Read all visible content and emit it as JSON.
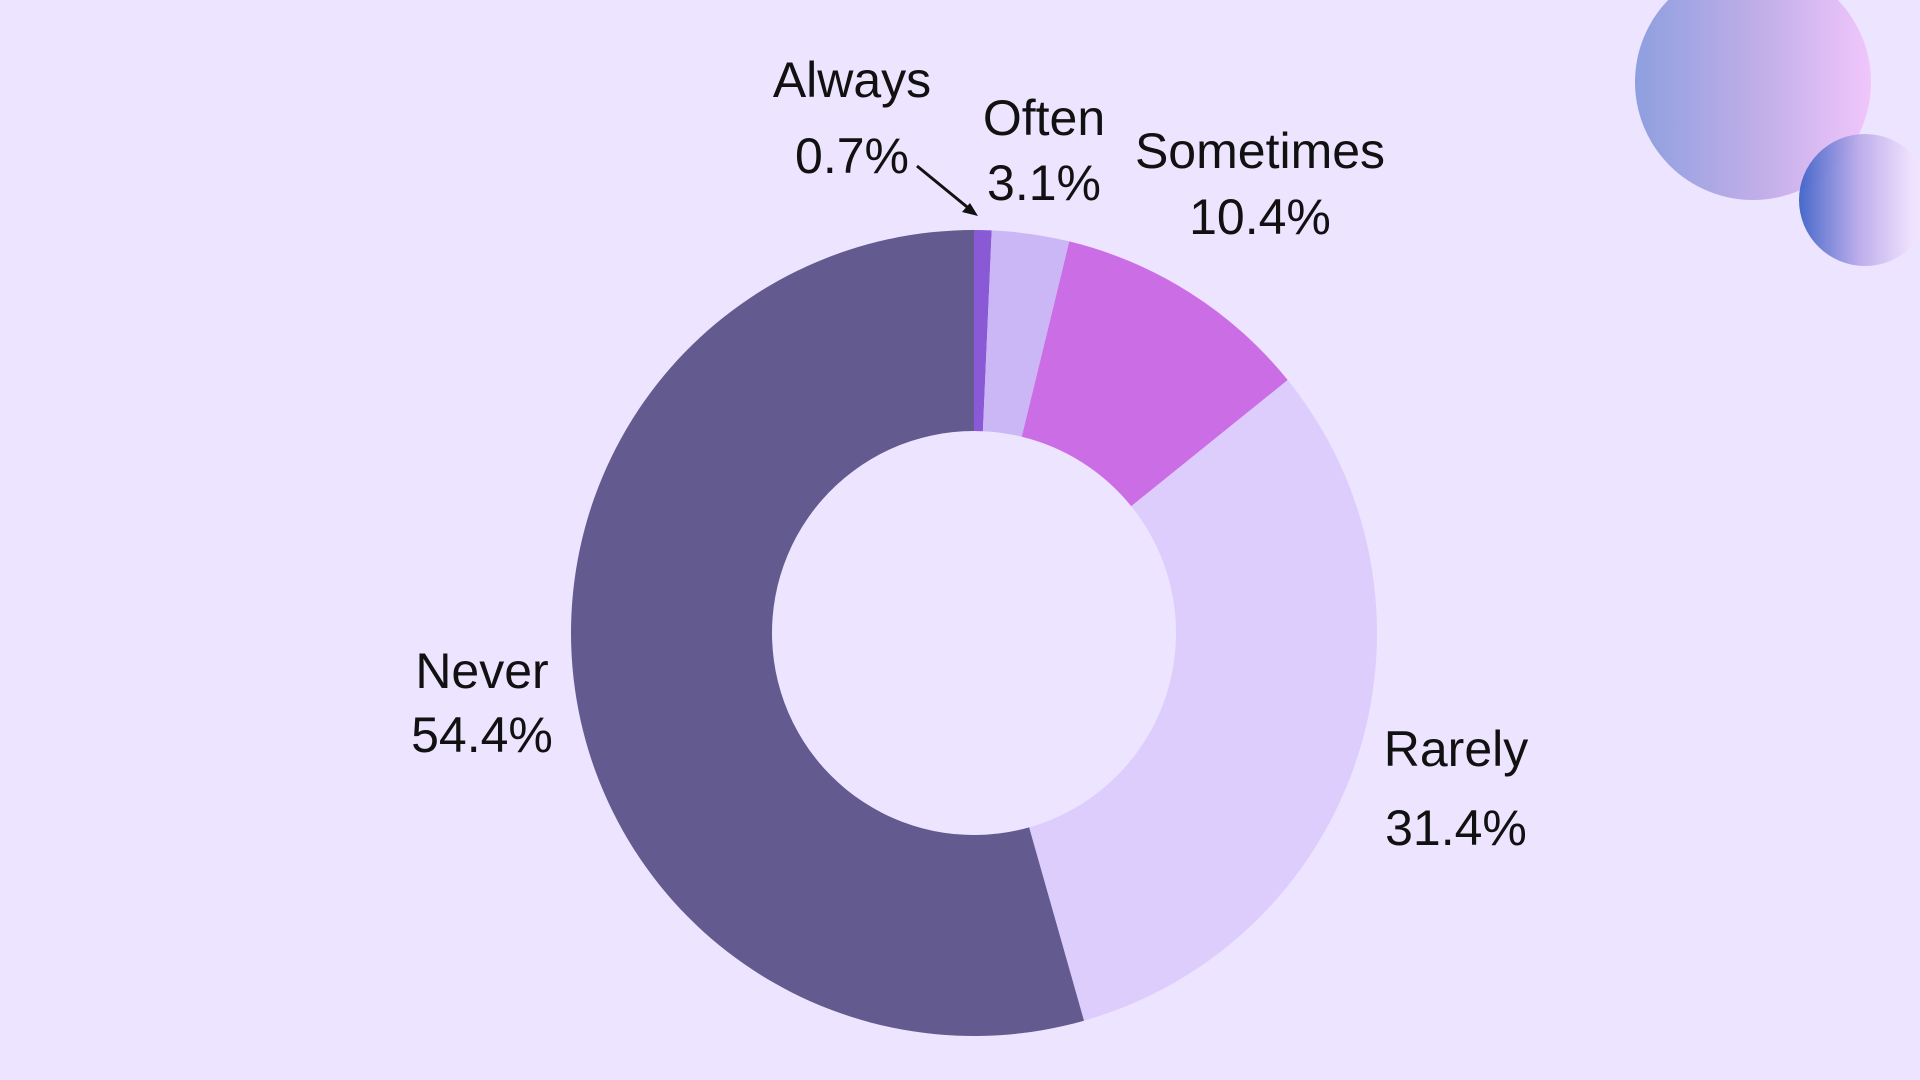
{
  "chart_data": {
    "type": "pie",
    "donut": true,
    "title": "",
    "slices": [
      {
        "label": "Always",
        "value": 0.7,
        "display": "0.7%",
        "color": "#8a5ad6"
      },
      {
        "label": "Often",
        "value": 3.1,
        "display": "3.1%",
        "color": "#cbb7f6"
      },
      {
        "label": "Sometimes",
        "value": 10.4,
        "display": "10.4%",
        "color": "#cb6de5"
      },
      {
        "label": "Rarely",
        "value": 31.4,
        "display": "31.4%",
        "color": "#ddcdfd"
      },
      {
        "label": "Never",
        "value": 54.4,
        "display": "54.4%",
        "color": "#635b8f"
      }
    ],
    "legend": "none",
    "start_angle": "12 o'clock, clockwise"
  },
  "colors": {
    "background": "#ede4ff",
    "text": "#111111"
  }
}
